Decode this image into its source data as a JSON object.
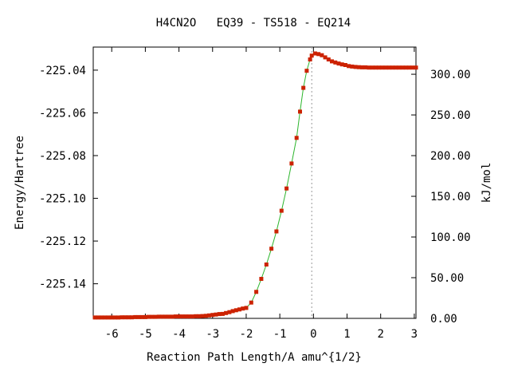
{
  "chart_data": {
    "type": "line",
    "title": "H4CN2O   EQ39 - TS518 - EQ214",
    "xlabel": "Reaction Path Length/A amu^{1/2}",
    "ylabel_left": "Energy/Hartree",
    "ylabel_right": "kJ/mol",
    "xlim": [
      -6.55,
      3.05
    ],
    "ylim_left": [
      -225.1562,
      -225.0292
    ],
    "ylim_right": [
      0,
      333.4
    ],
    "x_ticks": [
      -6,
      -5,
      -4,
      -3,
      -2,
      -1,
      0,
      1,
      2,
      3
    ],
    "x_tick_labels": [
      "-6",
      "-5",
      "-4",
      "-3",
      "-2",
      "-1",
      "0",
      "1",
      "2",
      "3"
    ],
    "y_left_ticks": [
      -225.14,
      -225.12,
      -225.1,
      -225.08,
      -225.06,
      -225.04
    ],
    "y_left_tick_labels": [
      "-225.14",
      "-225.12",
      "-225.10",
      "-225.08",
      "-225.06",
      "-225.04"
    ],
    "y_right_ticks": [
      0,
      50,
      100,
      150,
      200,
      250,
      300
    ],
    "y_right_tick_labels": [
      "0.00",
      "50.00",
      "100.00",
      "150.00",
      "200.00",
      "250.00",
      "300.00"
    ],
    "ts_x": -0.05,
    "series": [
      {
        "color": "#2bb52b",
        "marker_color": "#cc2200",
        "x": [
          -6.5,
          -6.4,
          -6.3,
          -6.2,
          -6.1,
          -6.0,
          -5.9,
          -5.8,
          -5.7,
          -5.6,
          -5.5,
          -5.4,
          -5.3,
          -5.2,
          -5.1,
          -5.0,
          -4.9,
          -4.8,
          -4.7,
          -4.6,
          -4.5,
          -4.4,
          -4.3,
          -4.2,
          -4.1,
          -4.0,
          -3.9,
          -3.8,
          -3.7,
          -3.6,
          -3.5,
          -3.4,
          -3.3,
          -3.2,
          -3.1,
          -3.0,
          -2.9,
          -2.8,
          -2.7,
          -2.6,
          -2.5,
          -2.4,
          -2.3,
          -2.2,
          -2.1,
          -2.0,
          -1.85,
          -1.7,
          -1.55,
          -1.4,
          -1.25,
          -1.1,
          -0.95,
          -0.8,
          -0.65,
          -0.5,
          -0.4,
          -0.3,
          -0.2,
          -0.1,
          -0.05,
          0.05,
          0.15,
          0.25,
          0.35,
          0.45,
          0.55,
          0.65,
          0.75,
          0.85,
          0.95,
          1.05,
          1.15,
          1.25,
          1.35,
          1.45,
          1.55,
          1.65,
          1.75,
          1.85,
          1.95,
          2.05,
          2.15,
          2.25,
          2.35,
          2.45,
          2.55,
          2.65,
          2.75,
          2.85,
          2.95,
          3.05
        ],
        "y": [
          -225.1558,
          -225.1558,
          -225.1558,
          -225.1558,
          -225.1558,
          -225.1558,
          -225.1558,
          -225.1558,
          -225.1557,
          -225.1557,
          -225.1557,
          -225.1557,
          -225.1556,
          -225.1556,
          -225.1556,
          -225.1556,
          -225.1555,
          -225.1555,
          -225.1555,
          -225.1554,
          -225.1554,
          -225.1554,
          -225.1554,
          -225.1554,
          -225.1553,
          -225.1553,
          -225.1553,
          -225.1553,
          -225.1553,
          -225.1553,
          -225.1552,
          -225.1552,
          -225.1551,
          -225.155,
          -225.1548,
          -225.1546,
          -225.1544,
          -225.1542,
          -225.1541,
          -225.1537,
          -225.1533,
          -225.1528,
          -225.1524,
          -225.152,
          -225.1516,
          -225.1513,
          -225.1488,
          -225.1438,
          -225.1377,
          -225.131,
          -225.1236,
          -225.1155,
          -225.1058,
          -225.0954,
          -225.0837,
          -225.0717,
          -225.0594,
          -225.0483,
          -225.0403,
          -225.035,
          -225.0332,
          -225.0322,
          -225.0325,
          -225.033,
          -225.034,
          -225.035,
          -225.0359,
          -225.0364,
          -225.0369,
          -225.0373,
          -225.0376,
          -225.0381,
          -225.0383,
          -225.0385,
          -225.0386,
          -225.0387,
          -225.0387,
          -225.0388,
          -225.0388,
          -225.0388,
          -225.0388,
          -225.0388,
          -225.0388,
          -225.0388,
          -225.0388,
          -225.0388,
          -225.0388,
          -225.0388,
          -225.0388,
          -225.0388,
          -225.0388,
          -225.0388
        ]
      }
    ]
  }
}
